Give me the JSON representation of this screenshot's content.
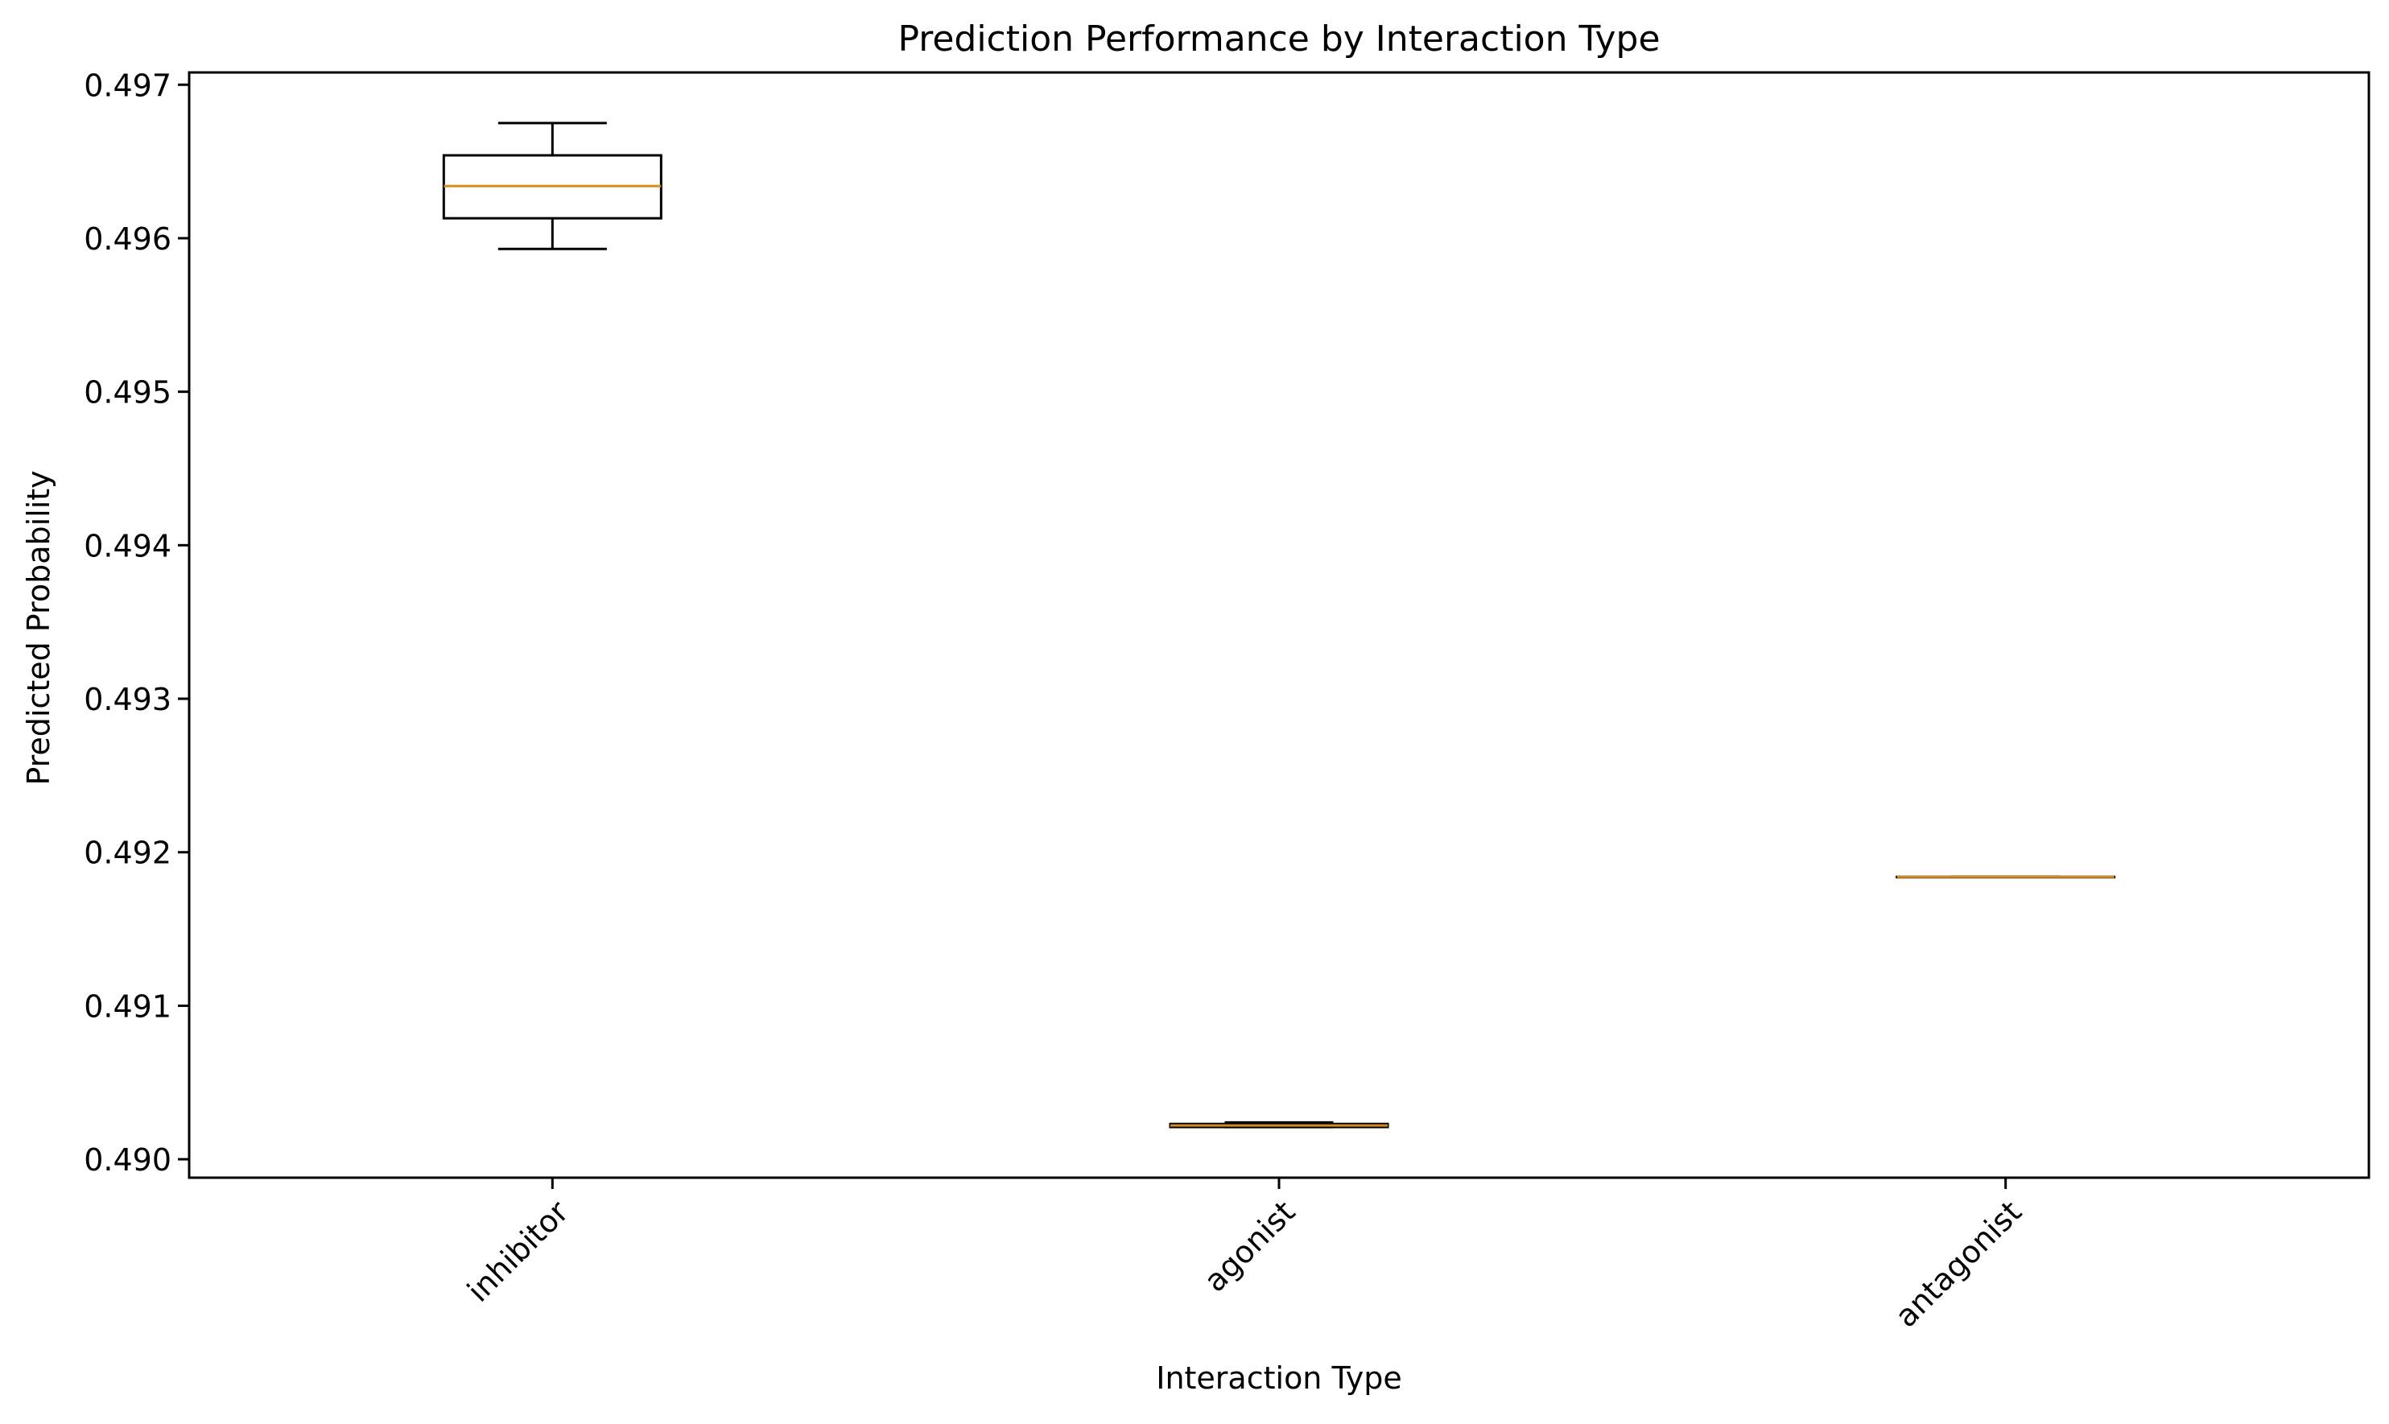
{
  "chart_data": {
    "type": "box",
    "title": "Prediction Performance by Interaction Type",
    "xlabel": "Interaction Type",
    "ylabel": "Predicted Probability",
    "ylim": [
      0.48988,
      0.49708
    ],
    "yticks": [
      0.49,
      0.491,
      0.492,
      0.493,
      0.494,
      0.495,
      0.496,
      0.497
    ],
    "ytick_labels": [
      "0.490",
      "0.491",
      "0.492",
      "0.493",
      "0.494",
      "0.495",
      "0.496",
      "0.497"
    ],
    "categories": [
      "inhibitor",
      "agonist",
      "antagonist"
    ],
    "boxes": [
      {
        "category": "inhibitor",
        "whisker_low": 0.49593,
        "q1": 0.49613,
        "median": 0.49634,
        "q3": 0.49654,
        "whisker_high": 0.49675
      },
      {
        "category": "agonist",
        "whisker_low": 0.49021,
        "q1": 0.49021,
        "median": 0.49022,
        "q3": 0.49023,
        "whisker_high": 0.49024
      },
      {
        "category": "antagonist",
        "whisker_low": 0.49184,
        "q1": 0.49184,
        "median": 0.49184,
        "q3": 0.49184,
        "whisker_high": 0.49184
      }
    ],
    "grid": false,
    "colors": {
      "box": "#000000",
      "median": "#d68b1f",
      "axes": "#000000"
    }
  }
}
